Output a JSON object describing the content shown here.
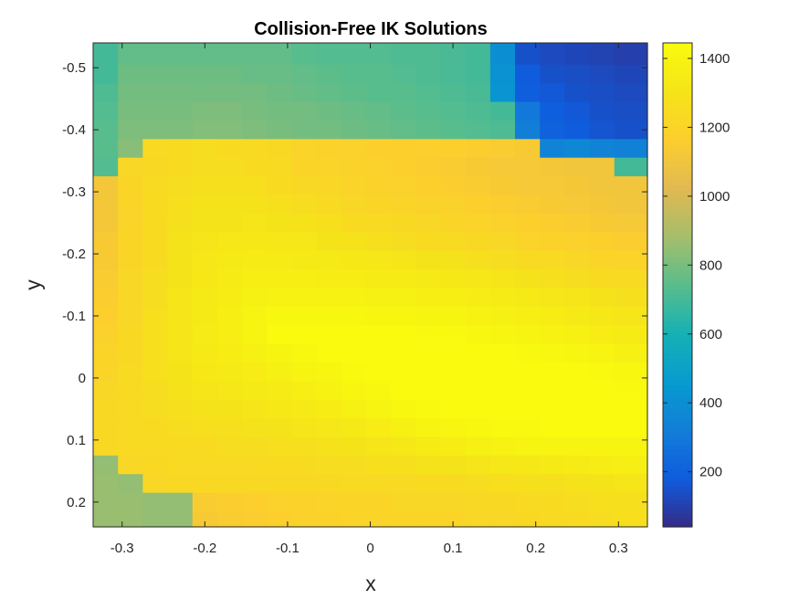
{
  "chart_data": {
    "type": "heatmap",
    "title": "Collision-Free IK Solutions",
    "xlabel": "x",
    "ylabel": "y",
    "xlim": [
      -0.335,
      0.335
    ],
    "ylim": [
      -0.54,
      0.24
    ],
    "y_reversed": true,
    "x_ticks": [
      {
        "value": -0.3,
        "label": "-0.3"
      },
      {
        "value": -0.2,
        "label": "-0.2"
      },
      {
        "value": -0.1,
        "label": "-0.1"
      },
      {
        "value": 0,
        "label": "0"
      },
      {
        "value": 0.1,
        "label": "0.1"
      },
      {
        "value": 0.2,
        "label": "0.2"
      },
      {
        "value": 0.3,
        "label": "0.3"
      }
    ],
    "y_ticks": [
      {
        "value": -0.5,
        "label": "-0.5"
      },
      {
        "value": -0.4,
        "label": "-0.4"
      },
      {
        "value": -0.3,
        "label": "-0.3"
      },
      {
        "value": -0.2,
        "label": "-0.2"
      },
      {
        "value": -0.1,
        "label": "-0.1"
      },
      {
        "value": 0,
        "label": "0"
      },
      {
        "value": 0.1,
        "label": "0.1"
      },
      {
        "value": 0.2,
        "label": "0.2"
      }
    ],
    "colorbar": {
      "colormap": "parula",
      "clim": [
        40,
        1445
      ],
      "ticks": [
        {
          "value": 200,
          "label": "200"
        },
        {
          "value": 400,
          "label": "400"
        },
        {
          "value": 600,
          "label": "600"
        },
        {
          "value": 800,
          "label": "800"
        },
        {
          "value": 1000,
          "label": "1000"
        },
        {
          "value": 1200,
          "label": "1200"
        },
        {
          "value": 1400,
          "label": "1400"
        }
      ]
    },
    "x_centers": [
      -0.32,
      -0.29,
      -0.26,
      -0.23,
      -0.2,
      -0.17,
      -0.14,
      -0.11,
      -0.08,
      -0.05,
      -0.02,
      0.01,
      0.04,
      0.07,
      0.1,
      0.13,
      0.16,
      0.19,
      0.22,
      0.25,
      0.28,
      0.31
    ],
    "y_centers": [
      -0.52,
      -0.49,
      -0.46,
      -0.43,
      -0.4,
      -0.37,
      -0.34,
      -0.31,
      -0.28,
      -0.25,
      -0.22,
      -0.19,
      -0.16,
      -0.13,
      -0.1,
      -0.07,
      -0.04,
      -0.01,
      0.02,
      0.05,
      0.08,
      0.11,
      0.14,
      0.17,
      0.2,
      0.23
    ],
    "values": [
      [
        700,
        760,
        760,
        760,
        760,
        760,
        760,
        760,
        740,
        730,
        730,
        730,
        720,
        720,
        710,
        700,
        400,
        150,
        130,
        120,
        110,
        100
      ],
      [
        700,
        780,
        780,
        780,
        780,
        780,
        770,
        770,
        760,
        750,
        740,
        740,
        730,
        720,
        710,
        700,
        420,
        180,
        150,
        140,
        130,
        120
      ],
      [
        720,
        790,
        790,
        790,
        790,
        790,
        790,
        780,
        770,
        760,
        750,
        740,
        740,
        730,
        720,
        710,
        430,
        190,
        170,
        150,
        140,
        130
      ],
      [
        730,
        800,
        800,
        800,
        810,
        810,
        800,
        790,
        790,
        780,
        770,
        760,
        750,
        740,
        730,
        720,
        700,
        300,
        190,
        170,
        150,
        140
      ],
      [
        740,
        810,
        810,
        810,
        820,
        820,
        810,
        800,
        790,
        790,
        780,
        770,
        760,
        750,
        740,
        730,
        720,
        330,
        200,
        180,
        160,
        150
      ],
      [
        740,
        830,
        1240,
        1250,
        1260,
        1250,
        1240,
        1230,
        1200,
        1190,
        1180,
        1170,
        1170,
        1170,
        1170,
        1160,
        1150,
        1140,
        350,
        370,
        350,
        340
      ],
      [
        730,
        1220,
        1230,
        1250,
        1260,
        1260,
        1250,
        1240,
        1210,
        1200,
        1190,
        1180,
        1170,
        1160,
        1150,
        1140,
        1130,
        1130,
        1120,
        1110,
        1110,
        700
      ],
      [
        1120,
        1210,
        1240,
        1260,
        1280,
        1280,
        1270,
        1250,
        1230,
        1220,
        1200,
        1190,
        1180,
        1170,
        1160,
        1150,
        1140,
        1130,
        1130,
        1120,
        1110,
        1110
      ],
      [
        1120,
        1200,
        1250,
        1270,
        1290,
        1290,
        1290,
        1280,
        1260,
        1240,
        1220,
        1210,
        1200,
        1190,
        1180,
        1170,
        1160,
        1150,
        1140,
        1130,
        1120,
        1110
      ],
      [
        1120,
        1200,
        1250,
        1280,
        1300,
        1300,
        1310,
        1300,
        1290,
        1270,
        1250,
        1240,
        1230,
        1220,
        1210,
        1200,
        1180,
        1170,
        1160,
        1150,
        1140,
        1130
      ],
      [
        1140,
        1210,
        1250,
        1290,
        1310,
        1320,
        1330,
        1320,
        1320,
        1300,
        1290,
        1280,
        1260,
        1250,
        1240,
        1230,
        1220,
        1200,
        1190,
        1180,
        1170,
        1160
      ],
      [
        1140,
        1210,
        1250,
        1300,
        1320,
        1340,
        1350,
        1350,
        1340,
        1340,
        1330,
        1320,
        1310,
        1300,
        1290,
        1280,
        1260,
        1250,
        1240,
        1220,
        1210,
        1200
      ],
      [
        1150,
        1220,
        1260,
        1300,
        1330,
        1350,
        1370,
        1370,
        1370,
        1360,
        1360,
        1350,
        1350,
        1340,
        1330,
        1320,
        1310,
        1290,
        1280,
        1260,
        1250,
        1240
      ],
      [
        1160,
        1220,
        1260,
        1310,
        1340,
        1360,
        1380,
        1390,
        1390,
        1390,
        1390,
        1380,
        1380,
        1370,
        1370,
        1360,
        1350,
        1340,
        1320,
        1310,
        1290,
        1280
      ],
      [
        1170,
        1220,
        1270,
        1310,
        1340,
        1370,
        1400,
        1420,
        1420,
        1420,
        1420,
        1410,
        1410,
        1400,
        1400,
        1390,
        1380,
        1370,
        1360,
        1340,
        1330,
        1310
      ],
      [
        1180,
        1230,
        1270,
        1310,
        1350,
        1370,
        1400,
        1440,
        1440,
        1440,
        1440,
        1440,
        1440,
        1430,
        1430,
        1420,
        1410,
        1400,
        1390,
        1380,
        1360,
        1350
      ],
      [
        1200,
        1230,
        1270,
        1310,
        1340,
        1360,
        1380,
        1400,
        1420,
        1440,
        1440,
        1440,
        1440,
        1440,
        1440,
        1440,
        1440,
        1430,
        1420,
        1410,
        1400,
        1380
      ],
      [
        1210,
        1240,
        1270,
        1300,
        1330,
        1340,
        1360,
        1380,
        1400,
        1410,
        1430,
        1440,
        1440,
        1440,
        1440,
        1440,
        1440,
        1440,
        1440,
        1440,
        1430,
        1420
      ],
      [
        1220,
        1240,
        1260,
        1290,
        1310,
        1320,
        1340,
        1350,
        1370,
        1390,
        1410,
        1420,
        1440,
        1440,
        1440,
        1440,
        1440,
        1440,
        1440,
        1440,
        1440,
        1430
      ],
      [
        1230,
        1240,
        1260,
        1280,
        1290,
        1300,
        1310,
        1330,
        1340,
        1360,
        1380,
        1400,
        1420,
        1430,
        1440,
        1440,
        1440,
        1440,
        1440,
        1440,
        1440,
        1440
      ],
      [
        1230,
        1240,
        1250,
        1260,
        1270,
        1280,
        1290,
        1300,
        1310,
        1320,
        1340,
        1360,
        1380,
        1400,
        1410,
        1420,
        1430,
        1430,
        1440,
        1440,
        1440,
        1440
      ],
      [
        1230,
        1240,
        1240,
        1250,
        1250,
        1260,
        1260,
        1270,
        1280,
        1290,
        1300,
        1310,
        1330,
        1350,
        1360,
        1380,
        1390,
        1400,
        1400,
        1400,
        1400,
        1400
      ],
      [
        850,
        1220,
        1230,
        1240,
        1240,
        1240,
        1240,
        1250,
        1250,
        1260,
        1260,
        1270,
        1280,
        1290,
        1300,
        1310,
        1320,
        1330,
        1340,
        1350,
        1360,
        1370
      ],
      [
        860,
        850,
        1220,
        1230,
        1230,
        1230,
        1230,
        1230,
        1230,
        1230,
        1240,
        1240,
        1240,
        1250,
        1250,
        1260,
        1270,
        1280,
        1280,
        1290,
        1300,
        1310
      ],
      [
        860,
        860,
        850,
        850,
        1150,
        1160,
        1170,
        1180,
        1190,
        1200,
        1210,
        1210,
        1220,
        1220,
        1220,
        1230,
        1230,
        1240,
        1250,
        1260,
        1270,
        1280
      ],
      [
        860,
        860,
        850,
        850,
        1140,
        1150,
        1160,
        1170,
        1180,
        1190,
        1200,
        1200,
        1210,
        1210,
        1210,
        1220,
        1220,
        1230,
        1240,
        1250,
        1260,
        1270
      ]
    ]
  }
}
